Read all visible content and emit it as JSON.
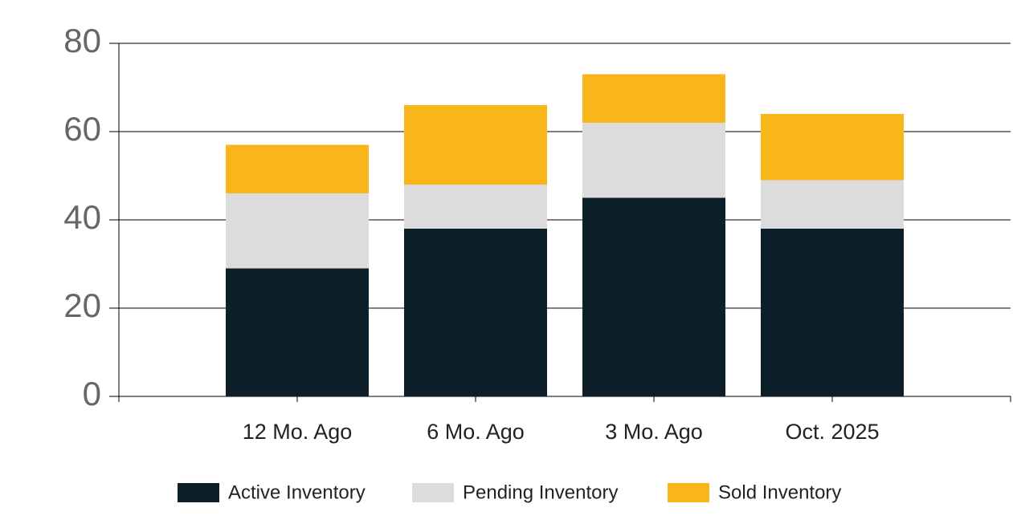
{
  "chart_data": {
    "type": "stacked_bar",
    "categories": [
      "12 Mo. Ago",
      "6 Mo. Ago",
      "3 Mo. Ago",
      "Oct. 2025"
    ],
    "series": [
      {
        "name": "Active Inventory",
        "color": "#0d1f2a",
        "values": [
          29,
          38,
          45,
          38
        ]
      },
      {
        "name": "Pending Inventory",
        "color": "#dcdcdc",
        "values": [
          17,
          10,
          17,
          11
        ]
      },
      {
        "name": "Sold Inventory",
        "color": "#f9b61a",
        "values": [
          11,
          18,
          11,
          15
        ]
      }
    ],
    "ylim": [
      0,
      80
    ],
    "yticks": [
      0,
      20,
      40,
      60,
      80
    ],
    "grid": true,
    "legend": "bottom"
  }
}
